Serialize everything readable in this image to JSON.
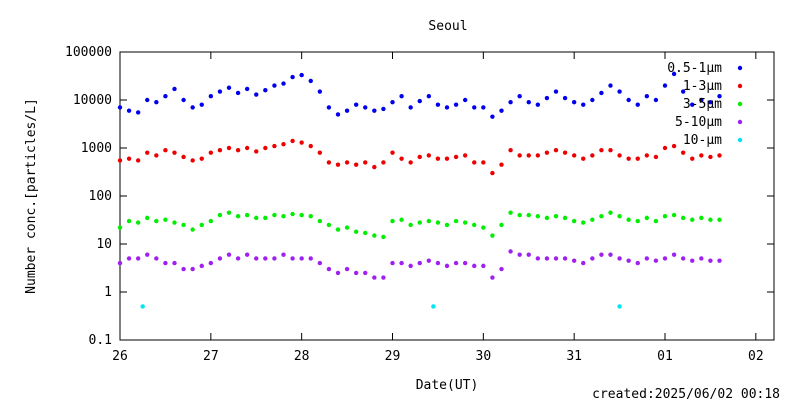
{
  "chart_data": {
    "type": "scatter",
    "title": "Seoul",
    "xlabel": "Date(UT)",
    "ylabel": "Number conc.[particles/L]",
    "yscale": "log",
    "ylim": [
      0.1,
      100000
    ],
    "xlim": [
      0,
      7.2
    ],
    "x_tick_labels": [
      "26",
      "27",
      "28",
      "29",
      "30",
      "31",
      "01",
      "02"
    ],
    "y_tick_labels": [
      "0.1",
      "1",
      "10",
      "100",
      "1000",
      "10000",
      "100000"
    ],
    "legend_position": "top-right",
    "grid": false,
    "footer": "created:2025/06/02 00:18",
    "series": [
      {
        "name": "0.5-1μm",
        "color": "#0000ee",
        "x": [
          0,
          0.1,
          0.2,
          0.3,
          0.4,
          0.5,
          0.6,
          0.7,
          0.8,
          0.9,
          1.0,
          1.1,
          1.2,
          1.3,
          1.4,
          1.5,
          1.6,
          1.7,
          1.8,
          1.9,
          2.0,
          2.1,
          2.2,
          2.3,
          2.4,
          2.5,
          2.6,
          2.7,
          2.8,
          2.9,
          3.0,
          3.1,
          3.2,
          3.3,
          3.4,
          3.5,
          3.6,
          3.7,
          3.8,
          3.9,
          4.0,
          4.1,
          4.2,
          4.3,
          4.4,
          4.5,
          4.6,
          4.7,
          4.8,
          4.9,
          5.0,
          5.1,
          5.2,
          5.3,
          5.4,
          5.5,
          5.6,
          5.7,
          5.8,
          5.9,
          6.0,
          6.1,
          6.2,
          6.3,
          6.4,
          6.5,
          6.6
        ],
        "values": [
          7000,
          6000,
          5500,
          10000,
          9000,
          12000,
          17000,
          10000,
          7000,
          8000,
          12000,
          15000,
          18000,
          14000,
          17000,
          13000,
          16000,
          20000,
          22000,
          30000,
          33000,
          25000,
          15000,
          7000,
          5000,
          6000,
          8000,
          7000,
          6000,
          6500,
          9000,
          12000,
          7000,
          9500,
          12000,
          8000,
          7000,
          8000,
          10000,
          7000,
          7000,
          4500,
          6000,
          9000,
          12000,
          9000,
          8000,
          11000,
          15000,
          11000,
          9000,
          8000,
          10000,
          14000,
          20000,
          15000,
          10000,
          8000,
          12000,
          10000,
          20000,
          35000,
          15000,
          8000,
          10000,
          9000,
          12000
        ]
      },
      {
        "name": "1-3μm",
        "color": "#ee0000",
        "x": [
          0,
          0.1,
          0.2,
          0.3,
          0.4,
          0.5,
          0.6,
          0.7,
          0.8,
          0.9,
          1.0,
          1.1,
          1.2,
          1.3,
          1.4,
          1.5,
          1.6,
          1.7,
          1.8,
          1.9,
          2.0,
          2.1,
          2.2,
          2.3,
          2.4,
          2.5,
          2.6,
          2.7,
          2.8,
          2.9,
          3.0,
          3.1,
          3.2,
          3.3,
          3.4,
          3.5,
          3.6,
          3.7,
          3.8,
          3.9,
          4.0,
          4.1,
          4.2,
          4.3,
          4.4,
          4.5,
          4.6,
          4.7,
          4.8,
          4.9,
          5.0,
          5.1,
          5.2,
          5.3,
          5.4,
          5.5,
          5.6,
          5.7,
          5.8,
          5.9,
          6.0,
          6.1,
          6.2,
          6.3,
          6.4,
          6.5,
          6.6
        ],
        "values": [
          550,
          600,
          550,
          800,
          700,
          900,
          800,
          650,
          550,
          600,
          800,
          900,
          1000,
          900,
          1000,
          850,
          1000,
          1100,
          1200,
          1400,
          1300,
          1100,
          800,
          500,
          450,
          500,
          450,
          500,
          400,
          500,
          800,
          600,
          500,
          650,
          700,
          600,
          600,
          650,
          700,
          500,
          500,
          300,
          450,
          900,
          700,
          700,
          700,
          800,
          900,
          800,
          700,
          600,
          700,
          900,
          900,
          700,
          600,
          600,
          700,
          650,
          1000,
          1100,
          800,
          600,
          700,
          650,
          700
        ]
      },
      {
        "name": "3-5μm",
        "color": "#00ee00",
        "x": [
          0,
          0.1,
          0.2,
          0.3,
          0.4,
          0.5,
          0.6,
          0.7,
          0.8,
          0.9,
          1.0,
          1.1,
          1.2,
          1.3,
          1.4,
          1.5,
          1.6,
          1.7,
          1.8,
          1.9,
          2.0,
          2.1,
          2.2,
          2.3,
          2.4,
          2.5,
          2.6,
          2.7,
          2.8,
          2.9,
          3.0,
          3.1,
          3.2,
          3.3,
          3.4,
          3.5,
          3.6,
          3.7,
          3.8,
          3.9,
          4.0,
          4.1,
          4.2,
          4.3,
          4.4,
          4.5,
          4.6,
          4.7,
          4.8,
          4.9,
          5.0,
          5.1,
          5.2,
          5.3,
          5.4,
          5.5,
          5.6,
          5.7,
          5.8,
          5.9,
          6.0,
          6.1,
          6.2,
          6.3,
          6.4,
          6.5,
          6.6
        ],
        "values": [
          22,
          30,
          28,
          35,
          30,
          32,
          28,
          25,
          20,
          25,
          30,
          40,
          45,
          38,
          40,
          35,
          35,
          40,
          38,
          42,
          40,
          38,
          30,
          25,
          20,
          22,
          18,
          17,
          15,
          14,
          30,
          32,
          25,
          28,
          30,
          28,
          25,
          30,
          28,
          25,
          22,
          15,
          25,
          45,
          40,
          40,
          38,
          35,
          38,
          35,
          30,
          28,
          32,
          38,
          45,
          38,
          32,
          30,
          35,
          30,
          38,
          40,
          35,
          32,
          35,
          32,
          32
        ]
      },
      {
        "name": "5-10μm",
        "color": "#a020f0",
        "x": [
          0,
          0.1,
          0.2,
          0.3,
          0.4,
          0.5,
          0.6,
          0.7,
          0.8,
          0.9,
          1.0,
          1.1,
          1.2,
          1.3,
          1.4,
          1.5,
          1.6,
          1.7,
          1.8,
          1.9,
          2.0,
          2.1,
          2.2,
          2.3,
          2.4,
          2.5,
          2.6,
          2.7,
          2.8,
          2.9,
          3.0,
          3.1,
          3.2,
          3.3,
          3.4,
          3.5,
          3.6,
          3.7,
          3.8,
          3.9,
          4.0,
          4.1,
          4.2,
          4.3,
          4.4,
          4.5,
          4.6,
          4.7,
          4.8,
          4.9,
          5.0,
          5.1,
          5.2,
          5.3,
          5.4,
          5.5,
          5.6,
          5.7,
          5.8,
          5.9,
          6.0,
          6.1,
          6.2,
          6.3,
          6.4,
          6.5,
          6.6
        ],
        "values": [
          4,
          5,
          5,
          6,
          5,
          4,
          4,
          3,
          3,
          3.5,
          4,
          5,
          6,
          5,
          6,
          5,
          5,
          5,
          6,
          5,
          5,
          5,
          4,
          3,
          2.5,
          3,
          2.5,
          2.5,
          2,
          2,
          4,
          4,
          3.5,
          4,
          4.5,
          4,
          3.5,
          4,
          4,
          3.5,
          3.5,
          2,
          3,
          7,
          6,
          6,
          5,
          5,
          5,
          5,
          4.5,
          4,
          5,
          6,
          6,
          5,
          4.5,
          4,
          5,
          4.5,
          5,
          6,
          5,
          4.5,
          5,
          4.5,
          4.5
        ]
      },
      {
        "name": "10-μm",
        "color": "#00e5ee",
        "x": [
          0.25,
          3.45,
          5.5
        ],
        "values": [
          0.5,
          0.5,
          0.5
        ]
      }
    ]
  }
}
